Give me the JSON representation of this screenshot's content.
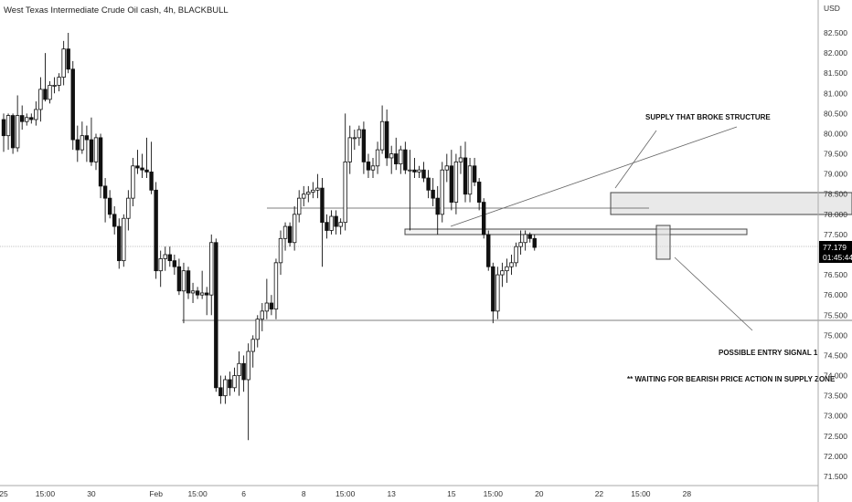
{
  "header": {
    "title": "West Texas Intermediate Crude Oil cash, 4h, BLACKBULL"
  },
  "price_scale": {
    "currency": "USD",
    "current_price": "77.179",
    "countdown": "01:45:44"
  },
  "annotations": {
    "supply": "SUPPLY THAT BROKE STRUCTURE",
    "entry": "POSSIBLE ENTRY SIGNAL 1",
    "waiting": "** WAITING FOR BEARISH PRICE ACTION IN SUPPLY ZONE"
  },
  "colors": {
    "candle": "#111111",
    "zone_fill": "#e8e8e8",
    "line": "#555555",
    "tag_bg": "#000000"
  },
  "chart_data": {
    "type": "candlestick",
    "title": "West Texas Intermediate Crude Oil cash, 4h, BLACKBULL",
    "ylim": [
      71.25,
      82.9
    ],
    "y_ticks": [
      71.5,
      72.0,
      72.5,
      73.0,
      73.5,
      74.0,
      74.5,
      75.0,
      75.5,
      76.0,
      76.5,
      77.0,
      77.5,
      78.0,
      78.5,
      79.0,
      79.5,
      80.0,
      80.5,
      81.0,
      81.5,
      82.0,
      82.5
    ],
    "y_tick_labels": [
      "71.500",
      "72.000",
      "72.500",
      "73.000",
      "73.500",
      "74.000",
      "74.500",
      "75.000",
      "75.500",
      "76.000",
      "76.500",
      "77.000",
      "77.500",
      "78.000",
      "78.500",
      "79.000",
      "79.500",
      "80.000",
      "80.500",
      "81.000",
      "81.500",
      "82.000",
      "82.500"
    ],
    "x_ticks": [
      {
        "label": "25",
        "i": 0
      },
      {
        "label": "15:00",
        "i": 9
      },
      {
        "label": "30",
        "i": 19
      },
      {
        "label": "Feb",
        "i": 33
      },
      {
        "label": "15:00",
        "i": 42
      },
      {
        "label": "6",
        "i": 52
      },
      {
        "label": "8",
        "i": 65
      },
      {
        "label": "15:00",
        "i": 74
      },
      {
        "label": "13",
        "i": 84
      },
      {
        "label": "15",
        "i": 97
      },
      {
        "label": "15:00",
        "i": 106
      },
      {
        "label": "20",
        "i": 116
      },
      {
        "label": "22",
        "i": 129
      },
      {
        "label": "15:00",
        "i": 138
      },
      {
        "label": "28",
        "i": 148
      }
    ],
    "candles": [
      {
        "o": 80.35,
        "h": 80.5,
        "l": 79.55,
        "c": 79.95
      },
      {
        "o": 79.95,
        "h": 80.5,
        "l": 79.6,
        "c": 80.45
      },
      {
        "o": 80.45,
        "h": 80.5,
        "l": 79.5,
        "c": 79.65
      },
      {
        "o": 79.65,
        "h": 80.95,
        "l": 79.55,
        "c": 80.45
      },
      {
        "o": 80.45,
        "h": 80.7,
        "l": 80.1,
        "c": 80.3
      },
      {
        "o": 80.3,
        "h": 80.5,
        "l": 80.2,
        "c": 80.4
      },
      {
        "o": 80.4,
        "h": 80.5,
        "l": 80.25,
        "c": 80.35
      },
      {
        "o": 80.35,
        "h": 80.8,
        "l": 80.2,
        "c": 80.6
      },
      {
        "o": 80.6,
        "h": 81.4,
        "l": 80.3,
        "c": 81.1
      },
      {
        "o": 81.1,
        "h": 82.0,
        "l": 80.8,
        "c": 80.85
      },
      {
        "o": 80.85,
        "h": 81.3,
        "l": 80.75,
        "c": 81.2
      },
      {
        "o": 81.2,
        "h": 81.4,
        "l": 81.0,
        "c": 81.2
      },
      {
        "o": 81.2,
        "h": 81.5,
        "l": 81.05,
        "c": 81.4
      },
      {
        "o": 81.4,
        "h": 82.3,
        "l": 81.2,
        "c": 82.1
      },
      {
        "o": 82.1,
        "h": 82.5,
        "l": 81.5,
        "c": 81.6
      },
      {
        "o": 81.6,
        "h": 81.8,
        "l": 79.6,
        "c": 79.85
      },
      {
        "o": 79.85,
        "h": 80.2,
        "l": 79.3,
        "c": 79.6
      },
      {
        "o": 79.6,
        "h": 80.3,
        "l": 79.5,
        "c": 79.95
      },
      {
        "o": 79.95,
        "h": 80.2,
        "l": 79.3,
        "c": 79.85
      },
      {
        "o": 79.85,
        "h": 80.4,
        "l": 79.2,
        "c": 79.3
      },
      {
        "o": 79.3,
        "h": 80.0,
        "l": 79.1,
        "c": 79.9
      },
      {
        "o": 79.9,
        "h": 80.0,
        "l": 78.4,
        "c": 78.7
      },
      {
        "o": 78.7,
        "h": 78.9,
        "l": 77.8,
        "c": 78.4
      },
      {
        "o": 78.4,
        "h": 78.6,
        "l": 77.9,
        "c": 78.0
      },
      {
        "o": 78.0,
        "h": 78.2,
        "l": 77.5,
        "c": 77.7
      },
      {
        "o": 77.7,
        "h": 77.9,
        "l": 76.65,
        "c": 76.85
      },
      {
        "o": 76.85,
        "h": 78.0,
        "l": 76.7,
        "c": 77.9
      },
      {
        "o": 77.9,
        "h": 78.6,
        "l": 77.6,
        "c": 78.4
      },
      {
        "o": 78.4,
        "h": 79.4,
        "l": 78.2,
        "c": 79.2
      },
      {
        "o": 79.2,
        "h": 79.6,
        "l": 79.0,
        "c": 79.15
      },
      {
        "o": 79.15,
        "h": 79.5,
        "l": 78.9,
        "c": 79.1
      },
      {
        "o": 79.1,
        "h": 79.9,
        "l": 78.9,
        "c": 79.05
      },
      {
        "o": 79.05,
        "h": 79.8,
        "l": 78.5,
        "c": 78.6
      },
      {
        "o": 78.6,
        "h": 78.8,
        "l": 76.4,
        "c": 76.6
      },
      {
        "o": 76.6,
        "h": 77.1,
        "l": 76.2,
        "c": 76.9
      },
      {
        "o": 76.9,
        "h": 77.2,
        "l": 76.6,
        "c": 77.0
      },
      {
        "o": 77.0,
        "h": 77.2,
        "l": 76.7,
        "c": 76.85
      },
      {
        "o": 76.85,
        "h": 77.0,
        "l": 76.5,
        "c": 76.7
      },
      {
        "o": 76.7,
        "h": 76.9,
        "l": 76.0,
        "c": 76.1
      },
      {
        "o": 76.1,
        "h": 76.8,
        "l": 75.3,
        "c": 76.6
      },
      {
        "o": 76.6,
        "h": 76.7,
        "l": 75.9,
        "c": 76.05
      },
      {
        "o": 76.05,
        "h": 76.3,
        "l": 75.8,
        "c": 76.1
      },
      {
        "o": 76.1,
        "h": 76.2,
        "l": 75.9,
        "c": 76.0
      },
      {
        "o": 76.0,
        "h": 76.6,
        "l": 75.9,
        "c": 76.05
      },
      {
        "o": 76.05,
        "h": 76.2,
        "l": 75.5,
        "c": 76.0
      },
      {
        "o": 76.0,
        "h": 77.5,
        "l": 75.5,
        "c": 77.3
      },
      {
        "o": 77.3,
        "h": 77.4,
        "l": 73.6,
        "c": 73.7
      },
      {
        "o": 73.7,
        "h": 74.0,
        "l": 73.3,
        "c": 73.5
      },
      {
        "o": 73.5,
        "h": 74.0,
        "l": 73.3,
        "c": 73.9
      },
      {
        "o": 73.9,
        "h": 74.1,
        "l": 73.5,
        "c": 73.7
      },
      {
        "o": 73.7,
        "h": 74.2,
        "l": 73.6,
        "c": 74.0
      },
      {
        "o": 74.0,
        "h": 74.6,
        "l": 73.5,
        "c": 74.3
      },
      {
        "o": 74.3,
        "h": 74.5,
        "l": 73.6,
        "c": 73.9
      },
      {
        "o": 73.9,
        "h": 74.8,
        "l": 72.4,
        "c": 74.6
      },
      {
        "o": 74.6,
        "h": 75.0,
        "l": 74.2,
        "c": 74.9
      },
      {
        "o": 74.9,
        "h": 75.5,
        "l": 74.7,
        "c": 75.4
      },
      {
        "o": 75.4,
        "h": 75.8,
        "l": 75.1,
        "c": 75.6
      },
      {
        "o": 75.6,
        "h": 76.4,
        "l": 75.4,
        "c": 75.8
      },
      {
        "o": 75.8,
        "h": 76.0,
        "l": 75.5,
        "c": 75.65
      },
      {
        "o": 75.65,
        "h": 76.9,
        "l": 75.4,
        "c": 76.8
      },
      {
        "o": 76.8,
        "h": 77.6,
        "l": 76.5,
        "c": 77.4
      },
      {
        "o": 77.4,
        "h": 77.8,
        "l": 77.1,
        "c": 77.7
      },
      {
        "o": 77.7,
        "h": 77.8,
        "l": 77.2,
        "c": 77.3
      },
      {
        "o": 77.3,
        "h": 78.2,
        "l": 77.1,
        "c": 78.0
      },
      {
        "o": 78.0,
        "h": 78.6,
        "l": 77.8,
        "c": 78.4
      },
      {
        "o": 78.4,
        "h": 78.7,
        "l": 78.2,
        "c": 78.5
      },
      {
        "o": 78.5,
        "h": 78.7,
        "l": 78.3,
        "c": 78.55
      },
      {
        "o": 78.55,
        "h": 78.8,
        "l": 78.4,
        "c": 78.6
      },
      {
        "o": 78.6,
        "h": 79.0,
        "l": 78.4,
        "c": 78.65
      },
      {
        "o": 78.65,
        "h": 78.9,
        "l": 76.7,
        "c": 77.8
      },
      {
        "o": 77.8,
        "h": 78.0,
        "l": 77.4,
        "c": 77.6
      },
      {
        "o": 77.6,
        "h": 78.1,
        "l": 77.5,
        "c": 77.95
      },
      {
        "o": 77.95,
        "h": 78.1,
        "l": 77.5,
        "c": 77.7
      },
      {
        "o": 77.7,
        "h": 77.9,
        "l": 77.5,
        "c": 77.8
      },
      {
        "o": 77.8,
        "h": 80.5,
        "l": 77.6,
        "c": 79.3
      },
      {
        "o": 79.3,
        "h": 80.2,
        "l": 79.0,
        "c": 79.9
      },
      {
        "o": 79.9,
        "h": 80.1,
        "l": 79.6,
        "c": 79.9
      },
      {
        "o": 79.9,
        "h": 80.2,
        "l": 79.7,
        "c": 80.1
      },
      {
        "o": 80.1,
        "h": 80.3,
        "l": 79.0,
        "c": 79.3
      },
      {
        "o": 79.3,
        "h": 79.5,
        "l": 78.9,
        "c": 79.1
      },
      {
        "o": 79.1,
        "h": 79.4,
        "l": 78.9,
        "c": 79.2
      },
      {
        "o": 79.2,
        "h": 79.8,
        "l": 79.0,
        "c": 79.6
      },
      {
        "o": 79.6,
        "h": 80.7,
        "l": 79.5,
        "c": 80.3
      },
      {
        "o": 80.3,
        "h": 80.6,
        "l": 79.2,
        "c": 79.4
      },
      {
        "o": 79.4,
        "h": 79.7,
        "l": 79.0,
        "c": 79.5
      },
      {
        "o": 79.5,
        "h": 79.9,
        "l": 79.1,
        "c": 79.25
      },
      {
        "o": 79.25,
        "h": 79.7,
        "l": 79.0,
        "c": 79.6
      },
      {
        "o": 79.6,
        "h": 79.8,
        "l": 79.0,
        "c": 79.1
      },
      {
        "o": 79.1,
        "h": 79.6,
        "l": 77.6,
        "c": 79.1
      },
      {
        "o": 79.1,
        "h": 79.4,
        "l": 78.9,
        "c": 79.05
      },
      {
        "o": 79.05,
        "h": 79.2,
        "l": 78.9,
        "c": 79.1
      },
      {
        "o": 79.1,
        "h": 79.3,
        "l": 78.8,
        "c": 78.9
      },
      {
        "o": 78.9,
        "h": 79.1,
        "l": 78.4,
        "c": 78.6
      },
      {
        "o": 78.6,
        "h": 78.9,
        "l": 78.2,
        "c": 78.4
      },
      {
        "o": 78.4,
        "h": 78.7,
        "l": 77.5,
        "c": 78.0
      },
      {
        "o": 78.0,
        "h": 79.3,
        "l": 77.8,
        "c": 79.1
      },
      {
        "o": 79.1,
        "h": 79.5,
        "l": 78.8,
        "c": 79.2
      },
      {
        "o": 79.2,
        "h": 79.6,
        "l": 78.1,
        "c": 78.3
      },
      {
        "o": 78.3,
        "h": 79.5,
        "l": 78.0,
        "c": 79.3
      },
      {
        "o": 79.3,
        "h": 79.7,
        "l": 79.0,
        "c": 79.4
      },
      {
        "o": 79.4,
        "h": 79.8,
        "l": 78.3,
        "c": 78.5
      },
      {
        "o": 78.5,
        "h": 79.4,
        "l": 78.3,
        "c": 79.2
      },
      {
        "o": 79.2,
        "h": 79.4,
        "l": 78.7,
        "c": 78.8
      },
      {
        "o": 78.8,
        "h": 78.9,
        "l": 78.1,
        "c": 78.3
      },
      {
        "o": 78.3,
        "h": 78.4,
        "l": 77.4,
        "c": 77.5
      },
      {
        "o": 77.5,
        "h": 77.6,
        "l": 76.6,
        "c": 76.7
      },
      {
        "o": 76.7,
        "h": 76.8,
        "l": 75.3,
        "c": 75.6
      },
      {
        "o": 75.6,
        "h": 76.7,
        "l": 75.4,
        "c": 76.5
      },
      {
        "o": 76.5,
        "h": 76.8,
        "l": 76.2,
        "c": 76.6
      },
      {
        "o": 76.6,
        "h": 76.9,
        "l": 76.3,
        "c": 76.7
      },
      {
        "o": 76.7,
        "h": 77.0,
        "l": 76.5,
        "c": 76.8
      },
      {
        "o": 76.8,
        "h": 77.3,
        "l": 76.7,
        "c": 77.2
      },
      {
        "o": 77.2,
        "h": 77.6,
        "l": 77.0,
        "c": 77.3
      },
      {
        "o": 77.3,
        "h": 77.6,
        "l": 77.1,
        "c": 77.5
      },
      {
        "o": 77.5,
        "h": 77.55,
        "l": 77.3,
        "c": 77.4
      },
      {
        "o": 77.4,
        "h": 77.5,
        "l": 77.1,
        "c": 77.18
      }
    ]
  }
}
